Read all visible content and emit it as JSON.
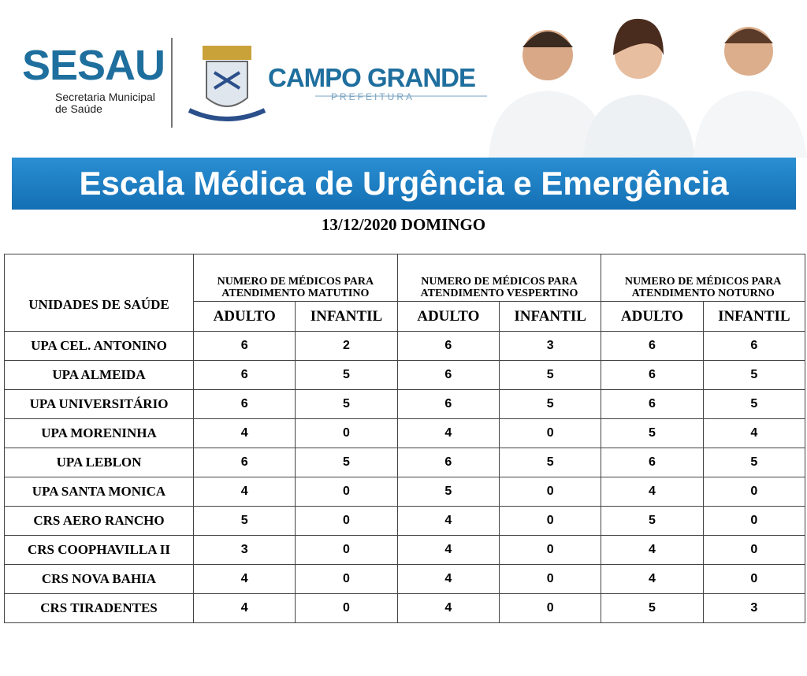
{
  "header": {
    "logo": "SESAU",
    "logo_sub": [
      "Secretaria Municipal",
      "de Saúde"
    ],
    "city": "CAMPO GRANDE",
    "city_sub": "PREFEITURA",
    "banner": "Escala Médica de Urgência e Emergência",
    "date": "13/12/2020 DOMINGO"
  },
  "table": {
    "corner": "UNIDADES DE SAÚDE",
    "groups": [
      "NUMERO DE MÉDICOS PARA ATENDIMENTO MATUTINO",
      "NUMERO DE MÉDICOS PARA ATENDIMENTO VESPERTINO",
      "NUMERO DE MÉDICOS PARA ATENDIMENTO NOTURNO"
    ],
    "subheaders": [
      "ADULTO",
      "INFANTIL",
      "ADULTO",
      "INFANTIL",
      "ADULTO",
      "INFANTIL"
    ],
    "rows": [
      [
        "UPA CEL. ANTONINO",
        6,
        2,
        6,
        3,
        6,
        6
      ],
      [
        "UPA ALMEIDA",
        6,
        5,
        6,
        5,
        6,
        5
      ],
      [
        "UPA UNIVERSITÁRIO",
        6,
        5,
        6,
        5,
        6,
        5
      ],
      [
        "UPA MORENINHA",
        4,
        0,
        4,
        0,
        5,
        4
      ],
      [
        "UPA LEBLON",
        6,
        5,
        6,
        5,
        6,
        5
      ],
      [
        "UPA SANTA MONICA",
        4,
        0,
        5,
        0,
        4,
        0
      ],
      [
        "CRS AERO RANCHO",
        5,
        0,
        4,
        0,
        5,
        0
      ],
      [
        "CRS COOPHAVILLA II",
        3,
        0,
        4,
        0,
        4,
        0
      ],
      [
        "CRS NOVA BAHIA",
        4,
        0,
        4,
        0,
        4,
        0
      ],
      [
        "CRS TIRADENTES",
        4,
        0,
        4,
        0,
        5,
        3
      ]
    ]
  }
}
